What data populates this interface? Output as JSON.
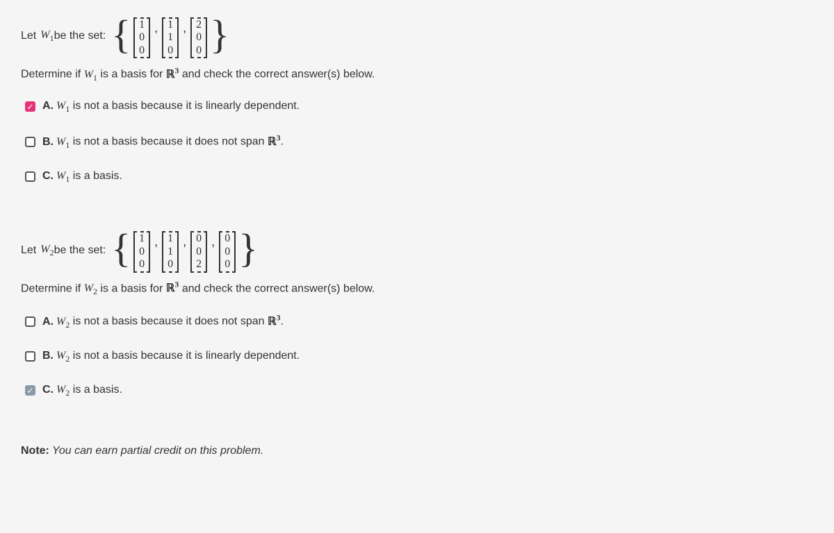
{
  "q1": {
    "let_pre": "Let ",
    "var": "W",
    "sub": "1",
    "let_post": " be the set:",
    "vectors": [
      [
        "1",
        "0",
        "0"
      ],
      [
        "1",
        "1",
        "0"
      ],
      [
        "2",
        "0",
        "0"
      ]
    ],
    "det_pre": "Determine if ",
    "det_mid": " is a basis for ",
    "space": "ℝ",
    "space_sup": "3",
    "det_post": " and check the correct answer(s) below.",
    "opts": [
      {
        "letter": "A.",
        "pre": "",
        "var": "W",
        "sub": "1",
        "text": " is not a basis because it is linearly dependent.",
        "checked": true,
        "alt": false
      },
      {
        "letter": "B.",
        "pre": "",
        "var": "W",
        "sub": "1",
        "text": " is not a basis because it does not span ",
        "tail_space": true,
        "checked": false,
        "alt": false
      },
      {
        "letter": "C.",
        "pre": "",
        "var": "W",
        "sub": "1",
        "text": " is a basis.",
        "checked": false,
        "alt": false
      }
    ]
  },
  "q2": {
    "let_pre": "Let ",
    "var": "W",
    "sub": "2",
    "let_post": " be the set:",
    "vectors": [
      [
        "1",
        "0",
        "0"
      ],
      [
        "1",
        "1",
        "0"
      ],
      [
        "0",
        "0",
        "2"
      ],
      [
        "0",
        "0",
        "0"
      ]
    ],
    "det_pre": "Determine if ",
    "det_mid": " is a basis for ",
    "space": "ℝ",
    "space_sup": "3",
    "det_post": " and check the correct answer(s) below.",
    "opts": [
      {
        "letter": "A.",
        "pre": "",
        "var": "W",
        "sub": "2",
        "text": " is not a basis because it does not span ",
        "tail_space": true,
        "checked": false,
        "alt": false
      },
      {
        "letter": "B.",
        "pre": "",
        "var": "W",
        "sub": "2",
        "text": " is not a basis because it is linearly dependent.",
        "checked": false,
        "alt": false
      },
      {
        "letter": "C.",
        "pre": "",
        "var": "W",
        "sub": "2",
        "text": " is a basis.",
        "checked": true,
        "alt": true
      }
    ]
  },
  "note_bold": "Note:",
  "note_rest": " You can earn partial credit on this problem.",
  "colors": {
    "checked_pink": "#e6327a",
    "checked_grey": "#8a9aa8",
    "text": "#333333",
    "bg": "#f5f5f5"
  }
}
